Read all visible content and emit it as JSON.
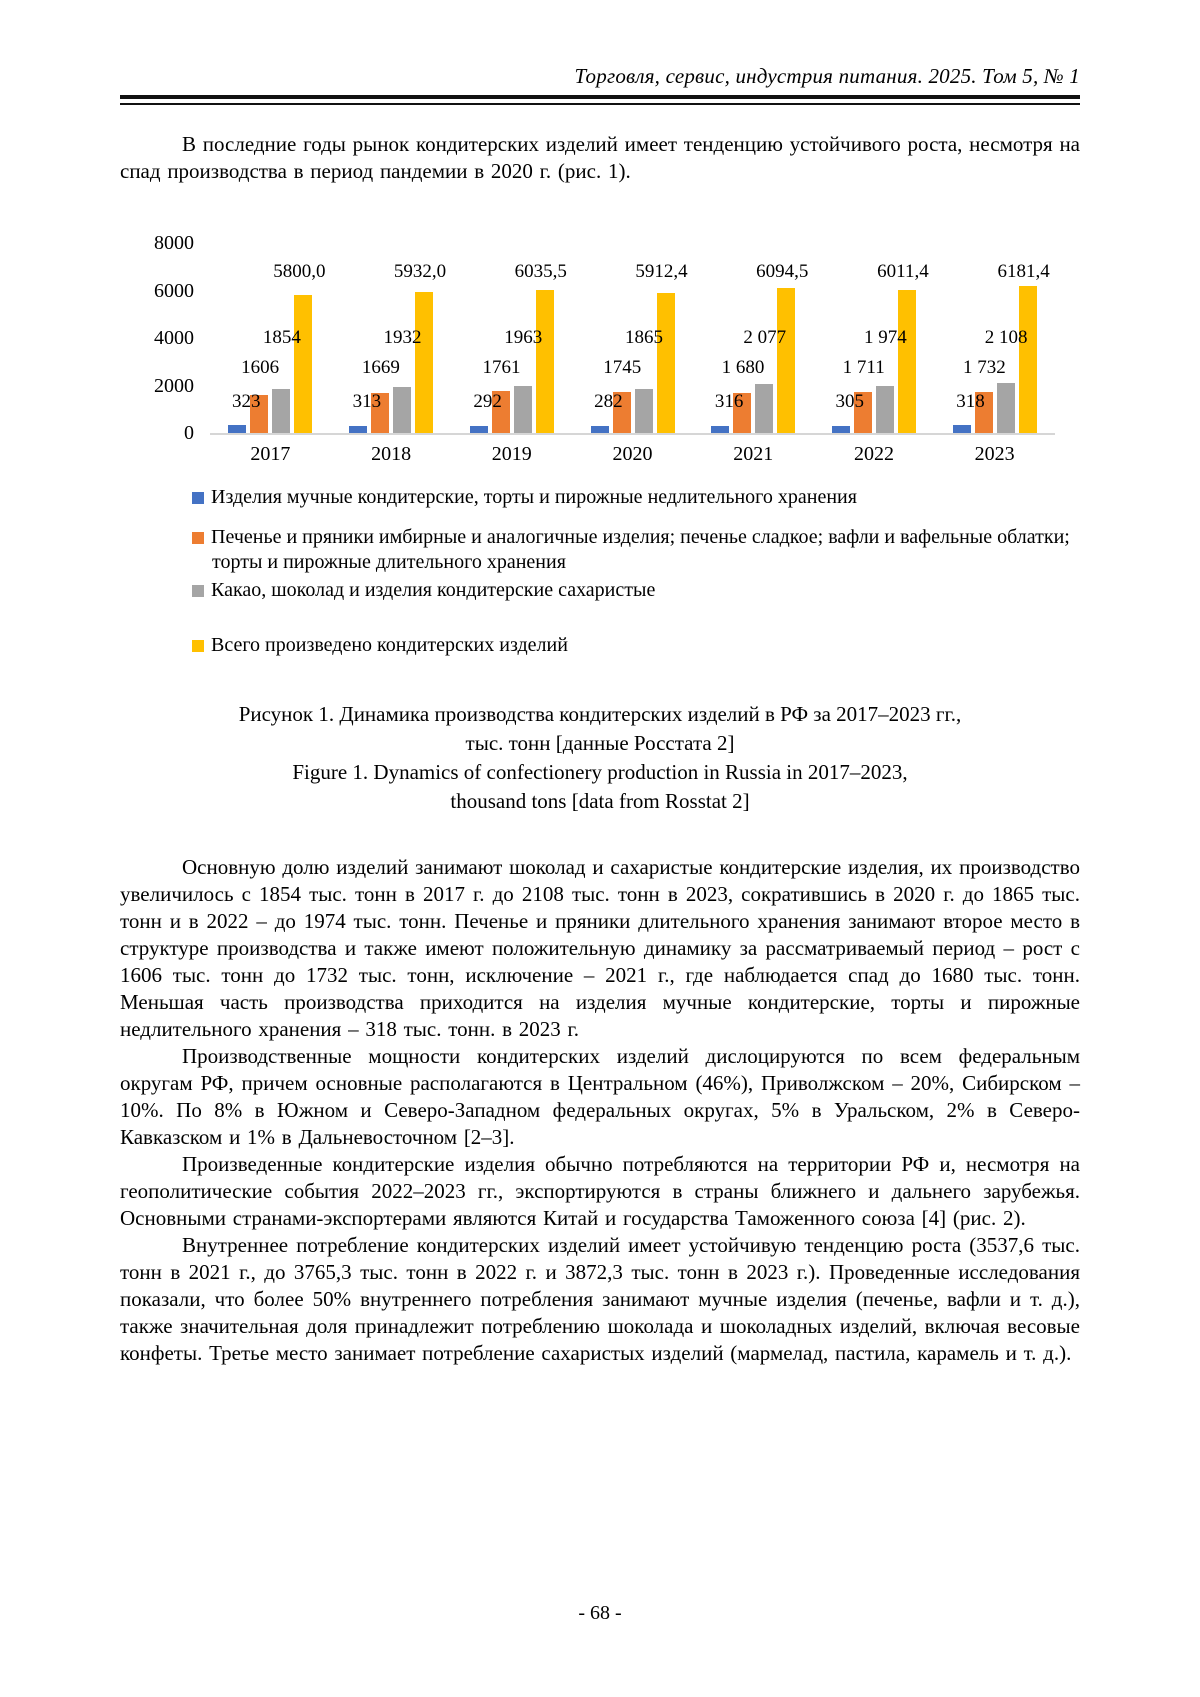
{
  "header": {
    "journal_line": "Торговля, сервис, индустрия питания. 2025. Том 5, № 1"
  },
  "paragraphs": {
    "p1": "В последние годы рынок кондитерских изделий имеет тенденцию устойчивого роста, несмотря на спад производства в период пандемии в 2020 г. (рис. 1).",
    "p2": "Основную долю изделий занимают шоколад и сахаристые кондитерские изделия, их производство увеличилось с 1854 тыс. тонн в 2017 г. до 2108 тыс. тонн в 2023, сократившись в 2020 г. до 1865 тыс. тонн и в 2022 – до 1974 тыс. тонн. Печенье и пряники длительного хранения занимают второе место в структуре производства и также имеют положительную динамику за рассматриваемый период – рост с 1606 тыс. тонн до 1732 тыс. тонн, исключение – 2021 г., где наблюдается спад до 1680 тыс. тонн. Меньшая часть производства приходится на изделия мучные кондитерские, торты и пирожные недлительного хранения – 318 тыс. тонн. в 2023 г.",
    "p3": "Производственные мощности кондитерских изделий дислоцируются по всем федеральным округам РФ, причем основные располагаются в Центральном (46%), Приволжском – 20%, Сибирском – 10%. По 8% в Южном и Северо-Западном федеральных округах, 5% в Уральском, 2% в Северо-Кавказском и 1% в Дальневосточном [2–3].",
    "p4": "Произведенные кондитерские изделия обычно потребляются на территории РФ и, несмотря на геополитические события 2022–2023 гг., экспортируются в страны ближнего и дальнего зарубежья. Основными странами-экспортерами являются Китай и государства Таможенного союза [4] (рис. 2).",
    "p5": "Внутреннее потребление кондитерских изделий имеет устойчивую тенденцию роста (3537,6 тыс. тонн в 2021 г., до 3765,3 тыс. тонн в 2022 г. и 3872,3 тыс. тонн в 2023 г.). Проведенные исследования показали, что более 50% внутреннего потребления занимают мучные изделия (печенье, вафли и т. д.), также значительная доля принадлежит потреблению шоколада и шоколадных изделий, включая весовые конфеты. Третье место занимает потребление сахаристых изделий (мармелад, пастила, карамель и т. д.)."
  },
  "chart_data": {
    "type": "bar",
    "title": "Динамика производства кондитерских изделий в РФ за 2017–2023 гг., тыс. тонн",
    "categories": [
      "2017",
      "2018",
      "2019",
      "2020",
      "2021",
      "2022",
      "2023"
    ],
    "series": [
      {
        "name": "Изделия мучные кондитерские, торты и пирожные недлительного хранения",
        "color": "#4472C4",
        "values": [
          323,
          313,
          292,
          282,
          316,
          305,
          318
        ],
        "labels": [
          "323",
          "313",
          "292",
          "282",
          "316",
          "305",
          "318"
        ]
      },
      {
        "name": "Печенье и пряники имбирные и аналогичные изделия; печенье сладкое; вафли и вафельные облатки; торты и пирожные длительного хранения",
        "color": "#ED7D31",
        "values": [
          1606,
          1669,
          1761,
          1745,
          1680,
          1711,
          1732
        ],
        "labels": [
          "1606",
          "1669",
          "1761",
          "1745",
          "1 680",
          "1 711",
          "1 732"
        ]
      },
      {
        "name": "Какао, шоколад и изделия кондитерские сахаристые",
        "color": "#A5A5A5",
        "values": [
          1854,
          1932,
          1963,
          1865,
          2077,
          1974,
          2108
        ],
        "labels": [
          "1854",
          "1932",
          "1963",
          "1865",
          "2 077",
          "1 974",
          "2 108"
        ]
      },
      {
        "name": "Всего произведено кондитерских изделий",
        "color": "#FFC000",
        "values": [
          5800.0,
          5932.0,
          6035.5,
          5912.4,
          6094.5,
          6011.4,
          6181.4
        ],
        "labels": [
          "5800,0",
          "5932,0",
          "6035,5",
          "5912,4",
          "6094,5",
          "6011,4",
          "6181,4"
        ]
      }
    ],
    "ylim": [
      0,
      8000
    ],
    "yticks": [
      0,
      2000,
      4000,
      6000,
      8000
    ],
    "grid": false,
    "legend_position": "bottom"
  },
  "caption": {
    "line1": "Рисунок 1. Динамика производства кондитерских изделий в РФ за 2017–2023 гг.,",
    "line2": "тыс. тонн [данные Росстата 2]",
    "line3": "Figure 1. Dynamics of confectionery production in Russia in 2017–2023,",
    "line4": "thousand tons [data from Rosstat 2]"
  },
  "footer": {
    "page_number": "- 68 -"
  }
}
